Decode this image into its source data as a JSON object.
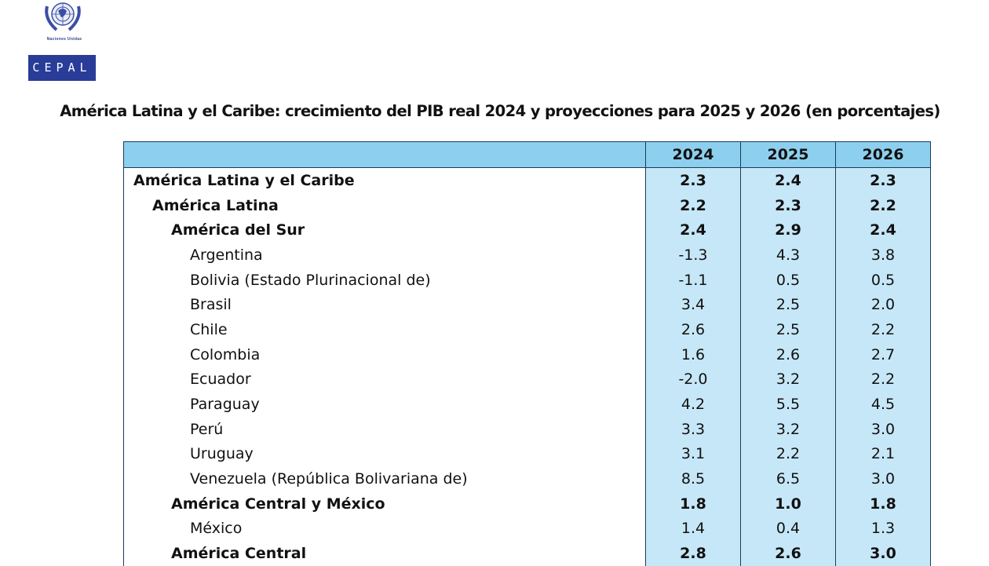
{
  "logo": {
    "org": "Naciones Unidas",
    "name": "CEPAL"
  },
  "title": "América Latina y el Caribe: crecimiento del PIB real 2024 y proyecciones para 2025 y 2026 (en porcentajes)",
  "table": {
    "columns": [
      "",
      "2024",
      "2025",
      "2026"
    ],
    "rows": [
      {
        "label": "América Latina y el Caribe",
        "level": 0,
        "bold": true,
        "values": [
          "2.3",
          "2.4",
          "2.3"
        ]
      },
      {
        "label": "América Latina",
        "level": 1,
        "bold": true,
        "values": [
          "2.2",
          "2.3",
          "2.2"
        ]
      },
      {
        "label": "América del Sur",
        "level": 2,
        "bold": true,
        "values": [
          "2.4",
          "2.9",
          "2.4"
        ]
      },
      {
        "label": "Argentina",
        "level": 3,
        "bold": false,
        "values": [
          "-1.3",
          "4.3",
          "3.8"
        ]
      },
      {
        "label": "Bolivia (Estado Plurinacional de)",
        "level": 3,
        "bold": false,
        "values": [
          "-1.1",
          "0.5",
          "0.5"
        ]
      },
      {
        "label": "Brasil",
        "level": 3,
        "bold": false,
        "values": [
          "3.4",
          "2.5",
          "2.0"
        ]
      },
      {
        "label": "Chile",
        "level": 3,
        "bold": false,
        "values": [
          "2.6",
          "2.5",
          "2.2"
        ]
      },
      {
        "label": "Colombia",
        "level": 3,
        "bold": false,
        "values": [
          "1.6",
          "2.6",
          "2.7"
        ]
      },
      {
        "label": "Ecuador",
        "level": 3,
        "bold": false,
        "values": [
          "-2.0",
          "3.2",
          "2.2"
        ]
      },
      {
        "label": "Paraguay",
        "level": 3,
        "bold": false,
        "values": [
          "4.2",
          "5.5",
          "4.5"
        ]
      },
      {
        "label": "Perú",
        "level": 3,
        "bold": false,
        "values": [
          "3.3",
          "3.2",
          "3.0"
        ]
      },
      {
        "label": "Uruguay",
        "level": 3,
        "bold": false,
        "values": [
          "3.1",
          "2.2",
          "2.1"
        ]
      },
      {
        "label": "Venezuela (República Bolivariana de)",
        "level": 3,
        "bold": false,
        "values": [
          "8.5",
          "6.5",
          "3.0"
        ]
      },
      {
        "label": "América Central y México",
        "level": 2,
        "bold": true,
        "values": [
          "1.8",
          "1.0",
          "1.8"
        ]
      },
      {
        "label": "México",
        "level": 3,
        "bold": false,
        "values": [
          "1.4",
          "0.4",
          "1.3"
        ]
      },
      {
        "label": "América Central",
        "level": 2,
        "bold": true,
        "values": [
          "2.8",
          "2.6",
          "3.0"
        ]
      }
    ]
  },
  "colors": {
    "header": "#8dcfee",
    "cells": "#c6e7f8",
    "logo": "#283c98"
  }
}
